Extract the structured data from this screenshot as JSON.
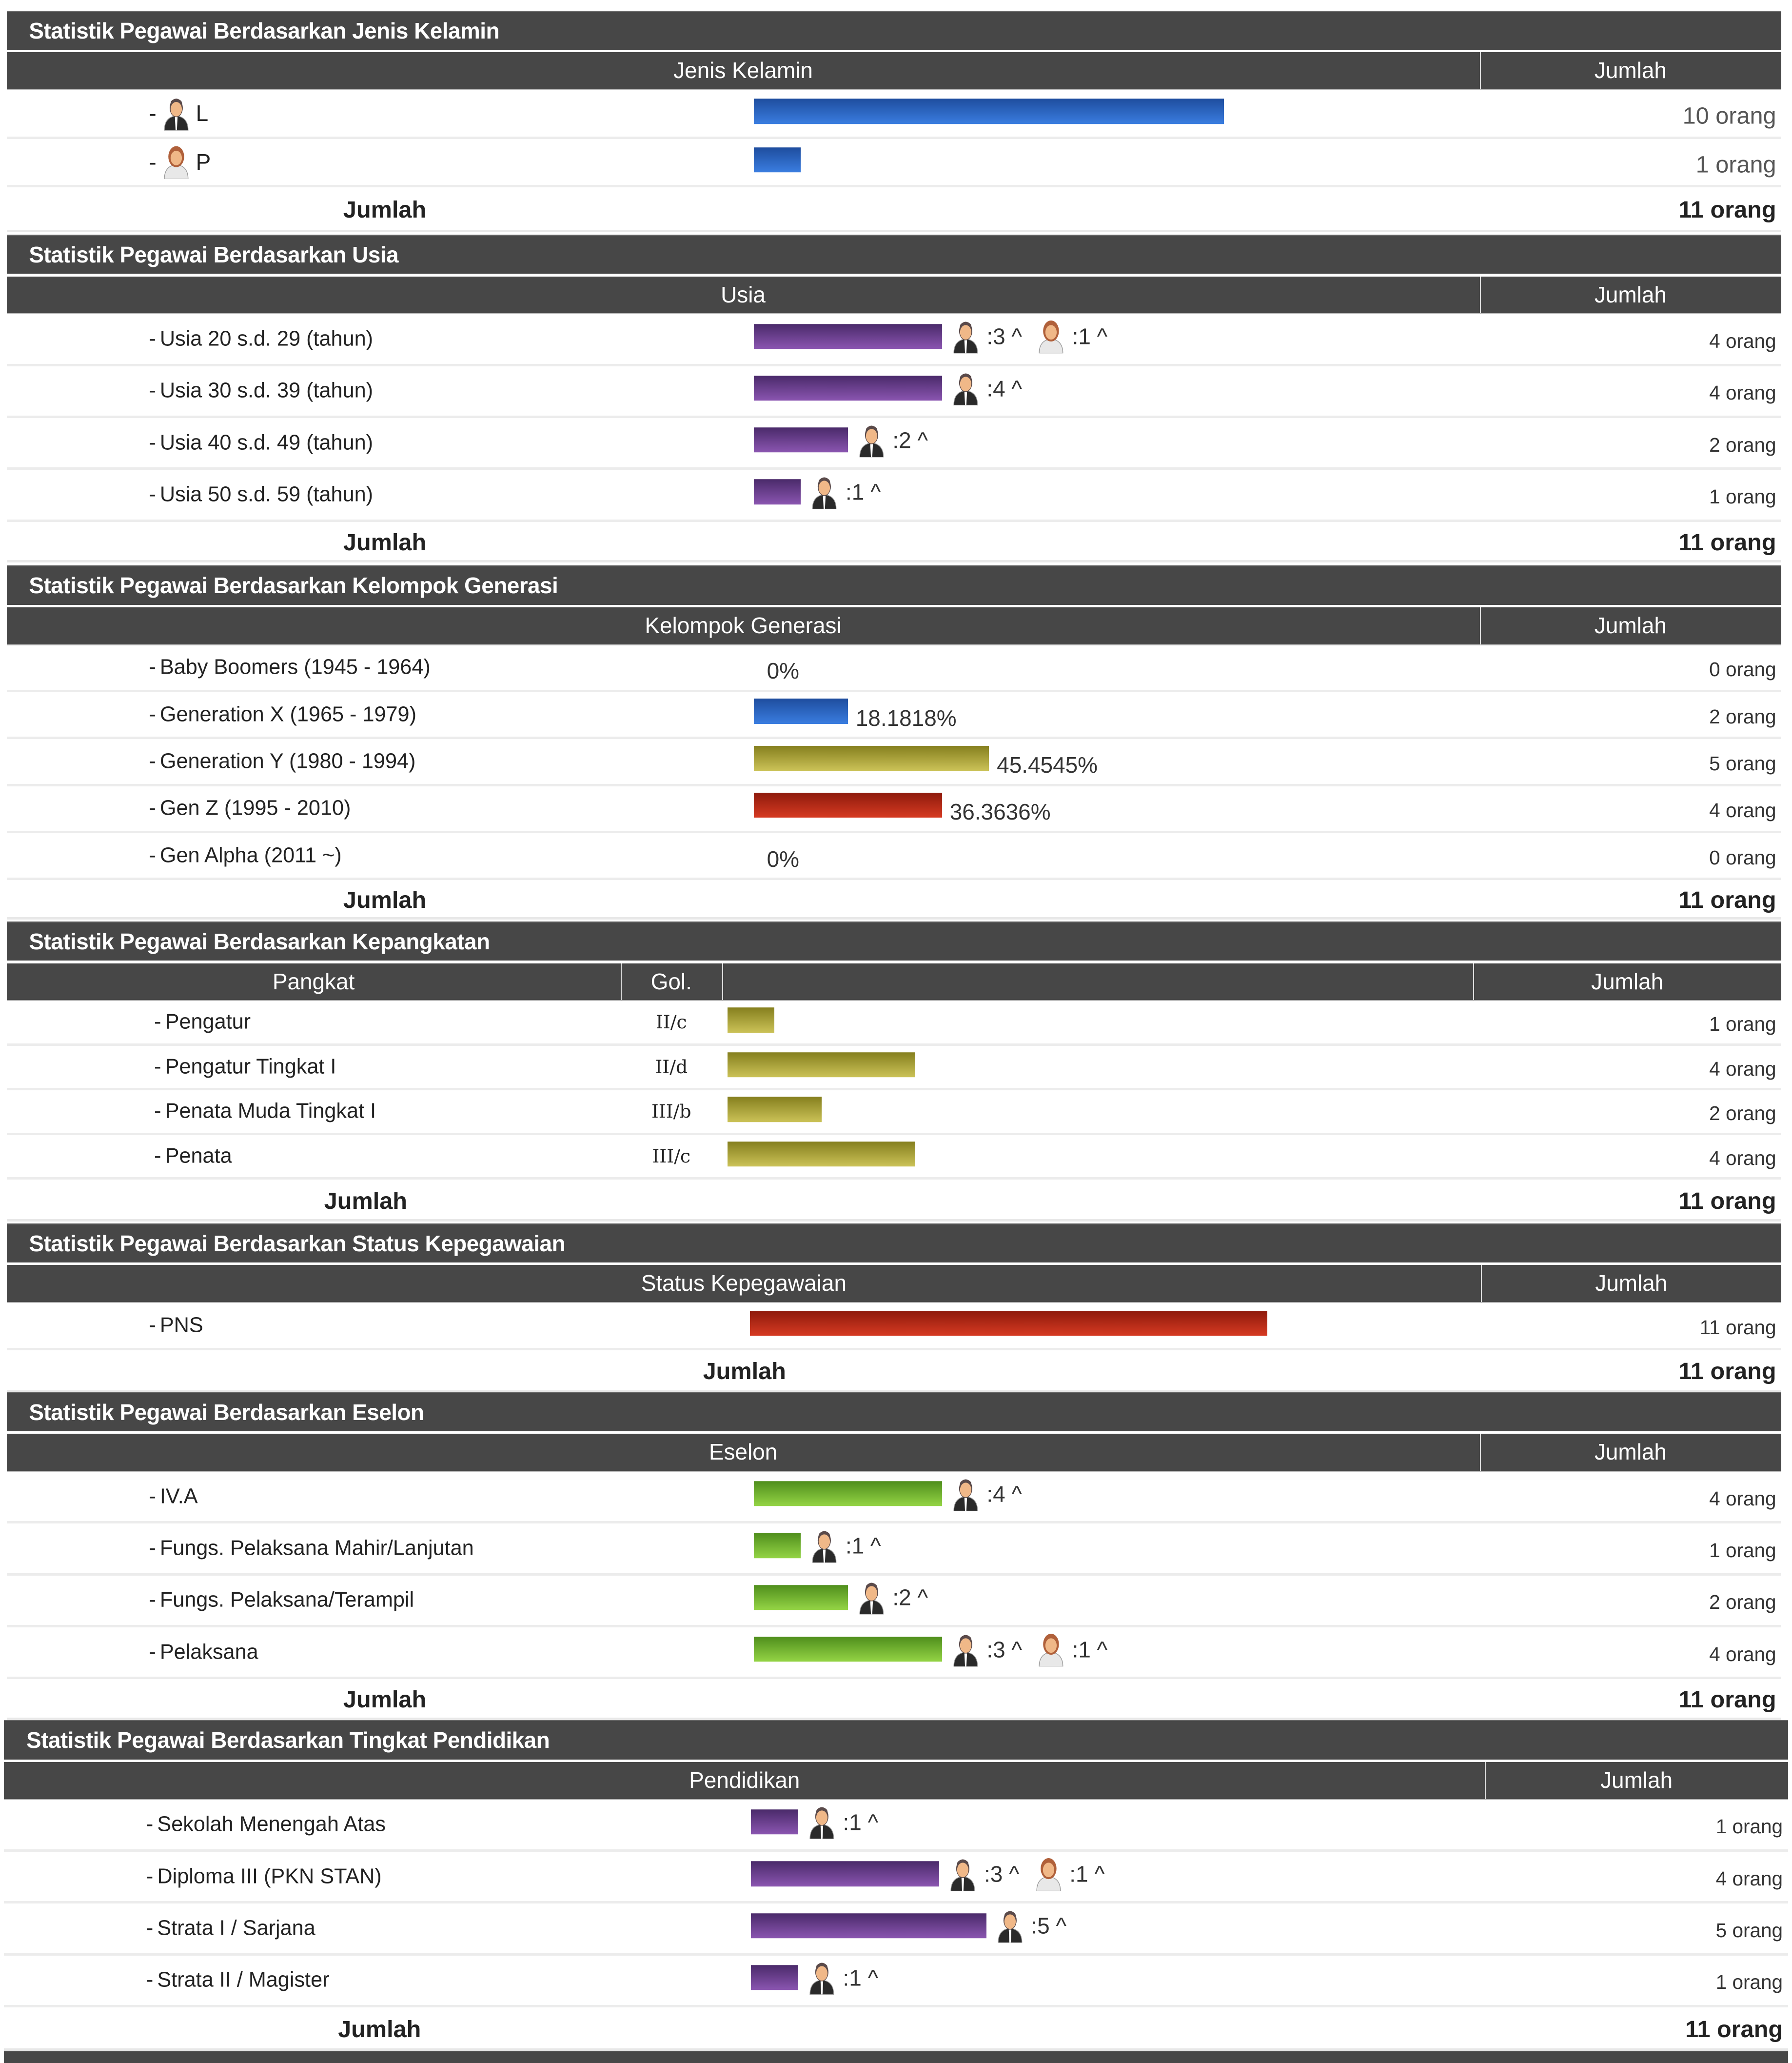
{
  "colors": {
    "blue": "#2c62c8",
    "purple": "#6a3f94",
    "olive": "#aba23a",
    "red": "#b52a18",
    "green": "#74b834",
    "header_bg": "#474747"
  },
  "sections": [
    {
      "title": "Statistik Pegawai Berdasarkan Jenis Kelamin",
      "columns": [
        "Jenis Kelamin",
        "Jumlah"
      ],
      "bar_color": "blue",
      "rows": [
        {
          "label": "L",
          "icon": "male",
          "value": 10,
          "count": "10 orang"
        },
        {
          "label": "P",
          "icon": "female",
          "value": 1,
          "count": "1 orang"
        }
      ],
      "total_label": "Jumlah",
      "total": "11 orang"
    },
    {
      "title": "Statistik Pegawai Berdasarkan Usia",
      "columns": [
        "Usia",
        "Jumlah"
      ],
      "bar_color": "purple",
      "rows": [
        {
          "label": "Usia 20 s.d. 29 (tahun)",
          "value": 4,
          "count": "4 orang",
          "breakdown": [
            {
              "gender": "male",
              "text": ":3 ^"
            },
            {
              "gender": "female",
              "text": ":1 ^"
            }
          ]
        },
        {
          "label": "Usia 30 s.d. 39 (tahun)",
          "value": 4,
          "count": "4 orang",
          "breakdown": [
            {
              "gender": "male",
              "text": ":4 ^"
            }
          ]
        },
        {
          "label": "Usia 40 s.d. 49 (tahun)",
          "value": 2,
          "count": "2 orang",
          "breakdown": [
            {
              "gender": "male",
              "text": ":2 ^"
            }
          ]
        },
        {
          "label": "Usia 50 s.d. 59 (tahun)",
          "value": 1,
          "count": "1 orang",
          "breakdown": [
            {
              "gender": "male",
              "text": ":1 ^"
            }
          ]
        }
      ],
      "total_label": "Jumlah",
      "total": "11 orang"
    },
    {
      "title": "Statistik Pegawai Berdasarkan Kelompok Generasi",
      "columns": [
        "Kelompok Generasi",
        "Jumlah"
      ],
      "rows": [
        {
          "label": "Baby Boomers (1945 - 1964)",
          "value": 0,
          "percent": "0%",
          "count": "0 orang"
        },
        {
          "label": "Generation X (1965 - 1979)",
          "value": 2,
          "percent": "18.1818%",
          "count": "2 orang",
          "bar_color": "blue"
        },
        {
          "label": "Generation Y (1980 - 1994)",
          "value": 5,
          "percent": "45.4545%",
          "count": "5 orang",
          "bar_color": "olive"
        },
        {
          "label": "Gen Z (1995 - 2010)",
          "value": 4,
          "percent": "36.3636%",
          "count": "4 orang",
          "bar_color": "red"
        },
        {
          "label": "Gen Alpha (2011 ~)",
          "value": 0,
          "percent": "0%",
          "count": "0 orang"
        }
      ],
      "total_label": "Jumlah",
      "total": "11 orang"
    },
    {
      "title": "Statistik Pegawai Berdasarkan Kepangkatan",
      "columns": [
        "Pangkat",
        "Gol.",
        "",
        "Jumlah"
      ],
      "bar_color": "olive",
      "rows": [
        {
          "label": "Pengatur",
          "gol": "II/c",
          "value": 1,
          "count": "1 orang"
        },
        {
          "label": "Pengatur Tingkat I",
          "gol": "II/d",
          "value": 4,
          "count": "4 orang"
        },
        {
          "label": "Penata Muda Tingkat I",
          "gol": "III/b",
          "value": 2,
          "count": "2 orang"
        },
        {
          "label": "Penata",
          "gol": "III/c",
          "value": 4,
          "count": "4 orang"
        }
      ],
      "total_label": "Jumlah",
      "total": "11 orang"
    },
    {
      "title": "Statistik Pegawai Berdasarkan Status Kepegawaian",
      "columns": [
        "Status Kepegawaian",
        "Jumlah"
      ],
      "bar_color": "red",
      "rows": [
        {
          "label": "PNS",
          "value": 11,
          "count": "11 orang"
        }
      ],
      "total_label": "Jumlah",
      "total": "11 orang"
    },
    {
      "title": "Statistik Pegawai Berdasarkan Eselon",
      "columns": [
        "Eselon",
        "Jumlah"
      ],
      "bar_color": "green",
      "rows": [
        {
          "label": "IV.A",
          "value": 4,
          "count": "4 orang",
          "breakdown": [
            {
              "gender": "male",
              "text": ":4 ^"
            }
          ]
        },
        {
          "label": "Fungs. Pelaksana Mahir/Lanjutan",
          "value": 1,
          "count": "1 orang",
          "breakdown": [
            {
              "gender": "male",
              "text": ":1 ^"
            }
          ]
        },
        {
          "label": "Fungs. Pelaksana/Terampil",
          "value": 2,
          "count": "2 orang",
          "breakdown": [
            {
              "gender": "male",
              "text": ":2 ^"
            }
          ]
        },
        {
          "label": "Pelaksana",
          "value": 4,
          "count": "4 orang",
          "breakdown": [
            {
              "gender": "male",
              "text": ":3 ^"
            },
            {
              "gender": "female",
              "text": ":1 ^"
            }
          ]
        }
      ],
      "total_label": "Jumlah",
      "total": "11 orang"
    },
    {
      "title": "Statistik Pegawai Berdasarkan Tingkat Pendidikan",
      "columns": [
        "Pendidikan",
        "Jumlah"
      ],
      "bar_color": "purple",
      "rows": [
        {
          "label": "Sekolah Menengah Atas",
          "value": 1,
          "count": "1 orang",
          "breakdown": [
            {
              "gender": "male",
              "text": ":1 ^"
            }
          ]
        },
        {
          "label": "Diploma III (PKN STAN)",
          "value": 4,
          "count": "4 orang",
          "breakdown": [
            {
              "gender": "male",
              "text": ":3 ^"
            },
            {
              "gender": "female",
              "text": ":1 ^"
            }
          ]
        },
        {
          "label": "Strata I / Sarjana",
          "value": 5,
          "count": "5 orang",
          "breakdown": [
            {
              "gender": "male",
              "text": ":5 ^"
            }
          ]
        },
        {
          "label": "Strata II / Magister",
          "value": 1,
          "count": "1 orang",
          "breakdown": [
            {
              "gender": "male",
              "text": ":1 ^"
            }
          ]
        }
      ],
      "total_label": "Jumlah",
      "total": "11 orang"
    }
  ]
}
